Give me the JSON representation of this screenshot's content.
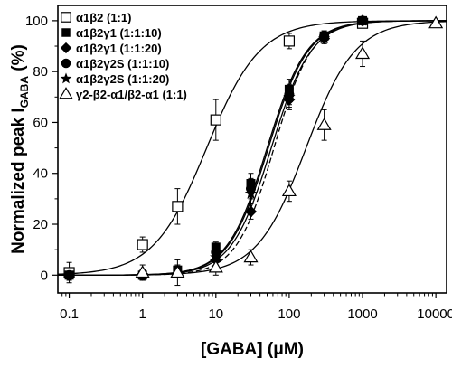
{
  "chart_data": {
    "type": "scatter",
    "title": "",
    "xlabel": "[GABA] (μM)",
    "ylabel_main": "Normalized peak I",
    "ylabel_sub": "GABA",
    "ylabel_unit": " (%)",
    "xscale": "log",
    "xlim": [
      0.07,
      14000
    ],
    "ylim": [
      -7,
      106
    ],
    "xticks": [
      0.1,
      1,
      10,
      100,
      1000,
      10000
    ],
    "xtick_labels": [
      "0.1",
      "1",
      "10",
      "100",
      "1000",
      "10000"
    ],
    "yticks": [
      0,
      20,
      40,
      60,
      80,
      100
    ],
    "ytick_labels": [
      "0",
      "20",
      "40",
      "60",
      "80",
      "100"
    ],
    "grid": false,
    "legend_position": "top-left",
    "series": [
      {
        "name": "α1β2 (1:1)",
        "marker": "open-square",
        "fit": {
          "ec50": 7.5,
          "hill": 1.2,
          "dash": "solid"
        },
        "points": [
          {
            "x": 0.1,
            "y": 1,
            "err": 4
          },
          {
            "x": 1,
            "y": 12,
            "err": 3
          },
          {
            "x": 3,
            "y": 27,
            "err": 7
          },
          {
            "x": 10,
            "y": 61,
            "err": 8
          },
          {
            "x": 100,
            "y": 92,
            "err": 3
          },
          {
            "x": 1000,
            "y": 99,
            "err": 1
          }
        ]
      },
      {
        "name": "α1β2γ1 (1:1:10)",
        "marker": "filled-square",
        "fit": {
          "ec50": 50,
          "hill": 1.6,
          "dash": "solid"
        },
        "points": [
          {
            "x": 0.1,
            "y": 0,
            "err": 2
          },
          {
            "x": 1,
            "y": 0,
            "err": 2
          },
          {
            "x": 3,
            "y": 2,
            "err": 2
          },
          {
            "x": 10,
            "y": 11,
            "err": 2
          },
          {
            "x": 30,
            "y": 36,
            "err": 4
          },
          {
            "x": 100,
            "y": 73,
            "err": 4
          },
          {
            "x": 300,
            "y": 94,
            "err": 2
          },
          {
            "x": 1000,
            "y": 100,
            "err": 1
          }
        ]
      },
      {
        "name": "α1β2γ1 (1:1:20)",
        "marker": "filled-diamond",
        "fit": {
          "ec50": 62,
          "hill": 1.7,
          "dash": "dashed"
        },
        "points": [
          {
            "x": 1,
            "y": 0,
            "err": 2
          },
          {
            "x": 10,
            "y": 6,
            "err": 2
          },
          {
            "x": 30,
            "y": 25,
            "err": 3
          },
          {
            "x": 100,
            "y": 69,
            "err": 4
          },
          {
            "x": 300,
            "y": 93,
            "err": 2
          },
          {
            "x": 1000,
            "y": 100,
            "err": 1
          }
        ]
      },
      {
        "name": "α1β2γ2S (1:1:10)",
        "marker": "filled-circle",
        "fit": {
          "ec50": 52,
          "hill": 1.6,
          "dash": "solid"
        },
        "points": [
          {
            "x": 0.1,
            "y": 0,
            "err": 2
          },
          {
            "x": 1,
            "y": 0,
            "err": 2
          },
          {
            "x": 10,
            "y": 9,
            "err": 2
          },
          {
            "x": 30,
            "y": 34,
            "err": 4
          },
          {
            "x": 100,
            "y": 71,
            "err": 4
          },
          {
            "x": 300,
            "y": 94,
            "err": 2
          },
          {
            "x": 1000,
            "y": 100,
            "err": 1
          }
        ]
      },
      {
        "name": "α1β2γ2S (1:1:20)",
        "marker": "filled-star",
        "fit": {
          "ec50": 57,
          "hill": 1.6,
          "dash": "solid"
        },
        "points": [
          {
            "x": 1,
            "y": 0,
            "err": 2
          },
          {
            "x": 10,
            "y": 7,
            "err": 2
          },
          {
            "x": 30,
            "y": 32,
            "err": 4
          },
          {
            "x": 100,
            "y": 70,
            "err": 4
          },
          {
            "x": 300,
            "y": 93,
            "err": 2
          },
          {
            "x": 1000,
            "y": 100,
            "err": 1
          }
        ]
      },
      {
        "name": "γ2-β2-α1/β2-α1 (1:1)",
        "marker": "open-triangle",
        "fit": {
          "ec50": 170,
          "hill": 1.3,
          "dash": "solid"
        },
        "points": [
          {
            "x": 1,
            "y": 1,
            "err": 3
          },
          {
            "x": 3,
            "y": 1,
            "err": 5
          },
          {
            "x": 10,
            "y": 3,
            "err": 3
          },
          {
            "x": 30,
            "y": 7,
            "err": 3
          },
          {
            "x": 100,
            "y": 33,
            "err": 4
          },
          {
            "x": 300,
            "y": 59,
            "err": 6
          },
          {
            "x": 1000,
            "y": 87,
            "err": 5
          },
          {
            "x": 10000,
            "y": 99,
            "err": 1
          }
        ]
      }
    ]
  }
}
